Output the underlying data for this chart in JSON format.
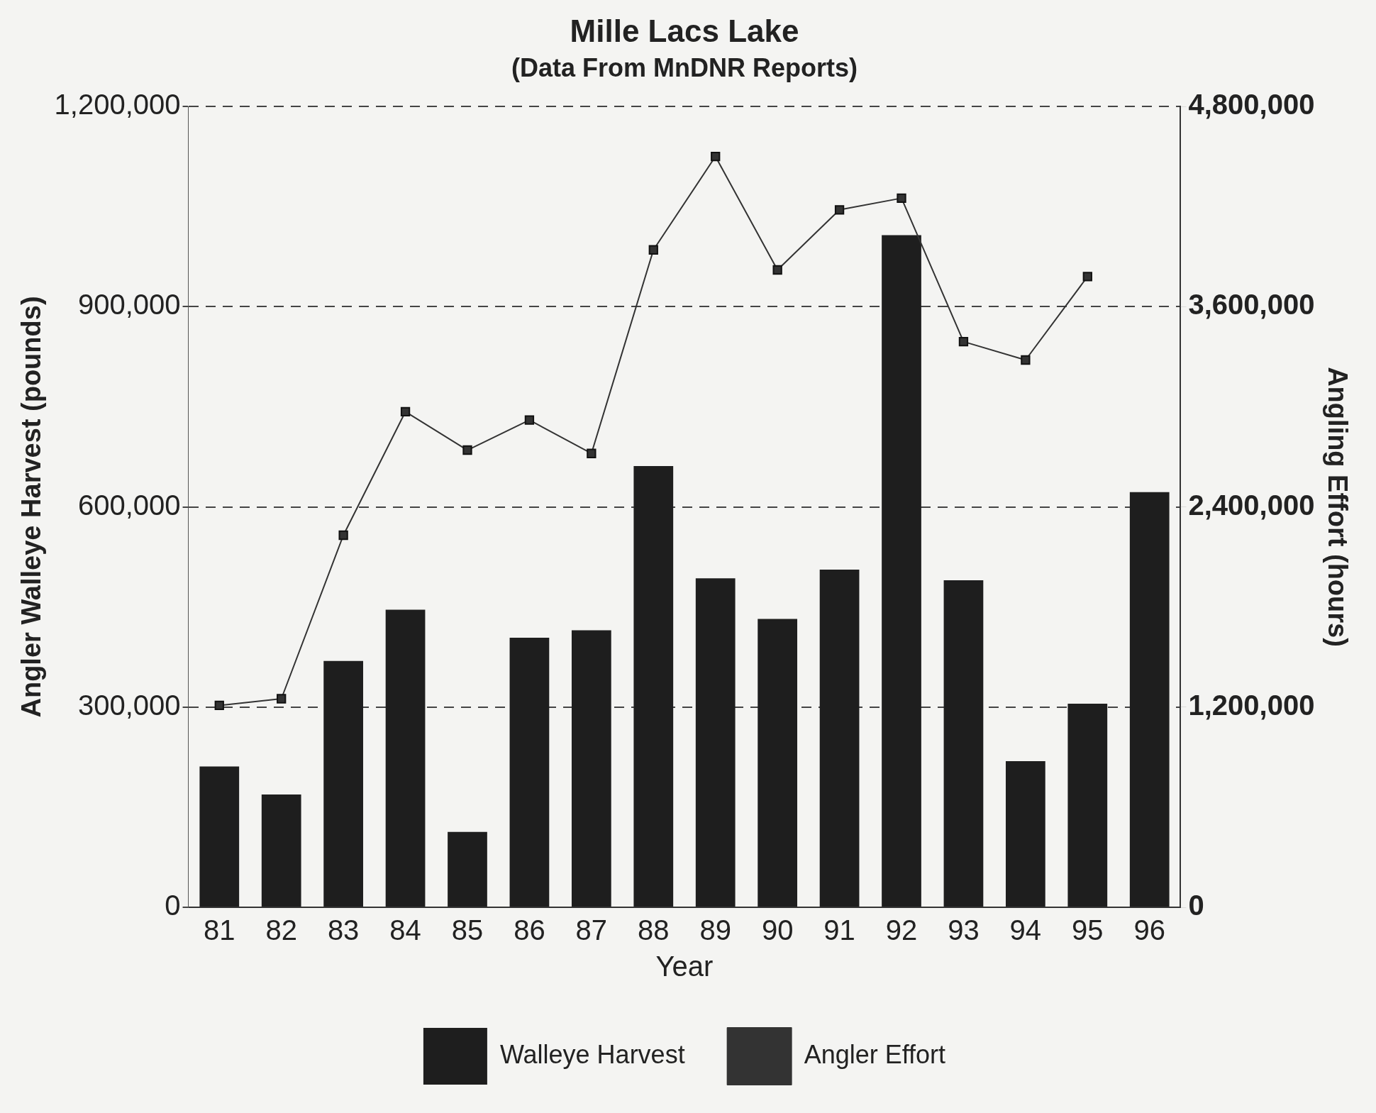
{
  "chart_data": {
    "type": "bar",
    "title": "Mille Lacs Lake",
    "subtitle": "(Data From MnDNR Reports)",
    "xlabel": "Year",
    "ylabel": "Angler Walleye Harvest (pounds)",
    "y2label": "Angling Effort (hours)",
    "categories": [
      "81",
      "82",
      "83",
      "84",
      "85",
      "86",
      "87",
      "88",
      "89",
      "90",
      "91",
      "92",
      "93",
      "94",
      "95",
      "96"
    ],
    "series": [
      {
        "name": "Walleye Harvest",
        "color": "#1e1e1e",
        "values": [
          211000,
          169000,
          369000,
          446000,
          113000,
          404000,
          415000,
          661000,
          493000,
          432000,
          506000,
          1007000,
          490000,
          219000,
          305000,
          622000
        ]
      },
      {
        "name": "Angler Effort",
        "type": "line",
        "axis": "y2",
        "color": "#333333",
        "values": [
          1210000,
          1250000,
          2230000,
          2970000,
          2740000,
          2920000,
          2720000,
          3940000,
          4500000,
          3820000,
          4180000,
          4250000,
          3390000,
          3280000,
          3780000,
          null
        ]
      }
    ],
    "ylim": [
      0,
      1200000
    ],
    "yticks": [
      0,
      {
        "value": 300000,
        "label": "300,000"
      },
      {
        "value": 600000,
        "label": "600,000"
      },
      {
        "value": 900000,
        "label": "900,000"
      },
      {
        "value": 1200000,
        "label": "1,200,000"
      }
    ],
    "y2lim": [
      0,
      4800000
    ],
    "y2ticks": [
      0,
      {
        "value": 1200000,
        "label": "1,200,000"
      },
      {
        "value": 2400000,
        "label": "2,400,000"
      },
      {
        "value": 3600000,
        "label": "3,600,000"
      },
      {
        "value": 4800000,
        "label": "4,800,000"
      }
    ],
    "grid": "y",
    "legend": "bottom",
    "marker": "square",
    "line_style": "solid"
  }
}
